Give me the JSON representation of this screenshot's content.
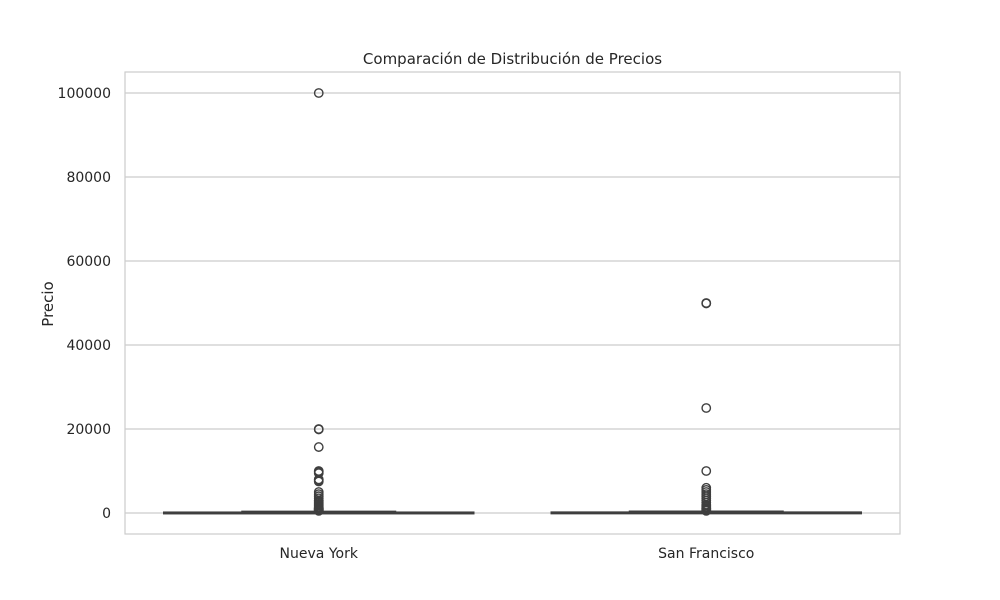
{
  "chart_data": {
    "type": "box",
    "title": "Comparación de Distribución de Precios",
    "xlabel": "",
    "ylabel": "Precio",
    "ylim": [
      -5000,
      105000
    ],
    "y_ticks": [
      0,
      20000,
      40000,
      60000,
      80000,
      100000
    ],
    "y_tick_labels": [
      "0",
      "20000",
      "40000",
      "60000",
      "80000",
      "100000"
    ],
    "grid": "horizontal",
    "categories": [
      "Nueva York",
      "San Francisco"
    ],
    "boxes": [
      {
        "category": "Nueva York",
        "whisker_low": 0,
        "q1": 60,
        "median": 110,
        "q3": 190,
        "whisker_high": 390,
        "outliers": [
          100000,
          20000,
          19900,
          15700,
          10000,
          9800,
          9500,
          8000,
          7800,
          7500,
          5000,
          4500,
          4000,
          3500,
          3000,
          2800,
          2500,
          2200,
          2000,
          1800,
          1500,
          1300,
          1100,
          1000,
          900,
          800,
          700,
          600,
          500
        ]
      },
      {
        "category": "San Francisco",
        "whisker_low": 0,
        "q1": 70,
        "median": 120,
        "q3": 210,
        "whisker_high": 420,
        "outliers": [
          50000,
          49900,
          25000,
          10000,
          6000,
          5500,
          5000,
          4500,
          4000,
          3500,
          3000,
          2500,
          2000,
          1800,
          1500,
          1200,
          1000,
          800,
          600,
          500
        ]
      }
    ],
    "colors": {
      "grid": "#cccccc",
      "frame": "#cccccc",
      "box_edge": "#3f3f3f",
      "box_fill": "#ffffff",
      "text": "#262626"
    }
  }
}
